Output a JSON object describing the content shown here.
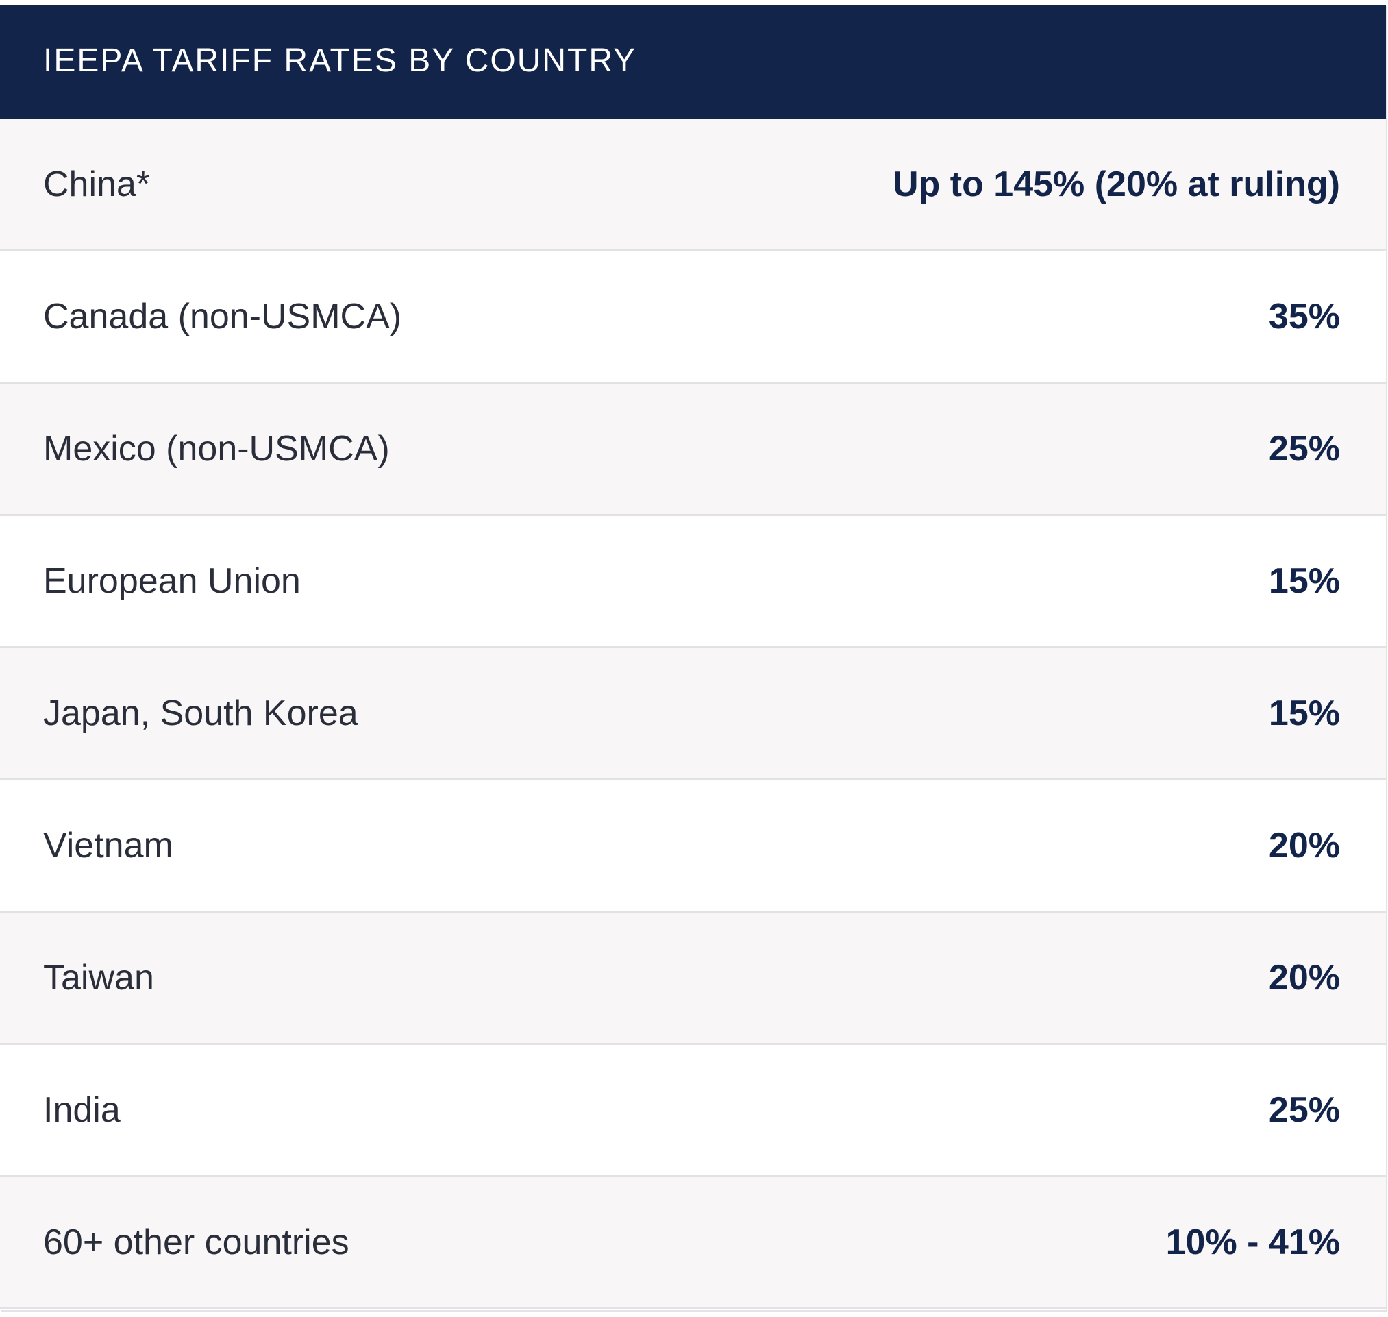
{
  "table": {
    "title": "IEEPA TARIFF RATES BY COUNTRY",
    "rows": [
      {
        "country": "China*",
        "rate": "Up to 145% (20% at ruling)"
      },
      {
        "country": "Canada (non-USMCA)",
        "rate": "35%"
      },
      {
        "country": "Mexico (non-USMCA)",
        "rate": "25%"
      },
      {
        "country": "European Union",
        "rate": "15%"
      },
      {
        "country": "Japan, South Korea",
        "rate": "15%"
      },
      {
        "country": "Vietnam",
        "rate": "20%"
      },
      {
        "country": "Taiwan",
        "rate": "20%"
      },
      {
        "country": "India",
        "rate": "25%"
      },
      {
        "country": "60+ other countries",
        "rate": "10% - 41%"
      }
    ]
  },
  "colors": {
    "header_bg": "#13244a",
    "row_alt_bg": "#f9f6f7",
    "rate_text": "#13244a"
  }
}
